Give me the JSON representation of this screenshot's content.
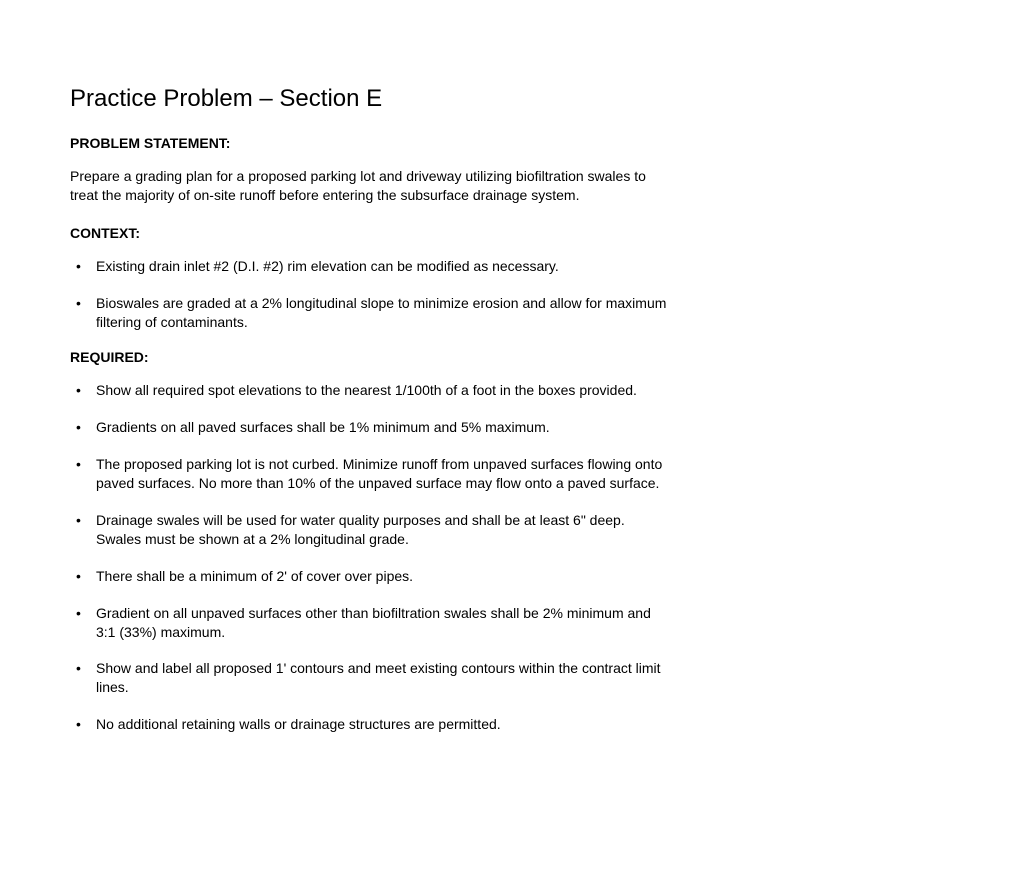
{
  "title": "Practice Problem – Section E",
  "sections": {
    "problem_statement": {
      "header": "PROBLEM STATEMENT:",
      "text": "Prepare a grading plan for a proposed parking lot and driveway utilizing biofiltration swales to treat the majority of on-site runoff before entering the subsurface drainage system."
    },
    "context": {
      "header": "CONTEXT:",
      "items": [
        "Existing drain inlet #2 (D.I. #2) rim elevation can be modified as necessary.",
        "Bioswales are graded at a 2% longitudinal slope to minimize erosion and allow for maximum filtering of contaminants."
      ]
    },
    "required": {
      "header": "REQUIRED:",
      "items": [
        "Show all required spot elevations to the nearest 1/100th of a foot in the boxes provided.",
        "Gradients on all paved surfaces shall be 1% minimum and 5% maximum.",
        "The proposed parking lot is not curbed.  Minimize runoff from unpaved surfaces flowing onto paved surfaces.  No more than 10% of the unpaved surface may flow onto a paved surface.",
        "Drainage swales will be used for water quality purposes and shall be at least 6\" deep.  Swales must be shown at a 2% longitudinal grade.",
        "There shall be a minimum of 2' of cover over pipes.",
        "Gradient on all unpaved surfaces other than biofiltration swales shall be 2% minimum and 3:1 (33%) maximum.",
        "Show and label all proposed 1' contours and meet existing contours within the contract limit lines.",
        "No additional retaining walls or drainage structures are permitted."
      ]
    }
  }
}
